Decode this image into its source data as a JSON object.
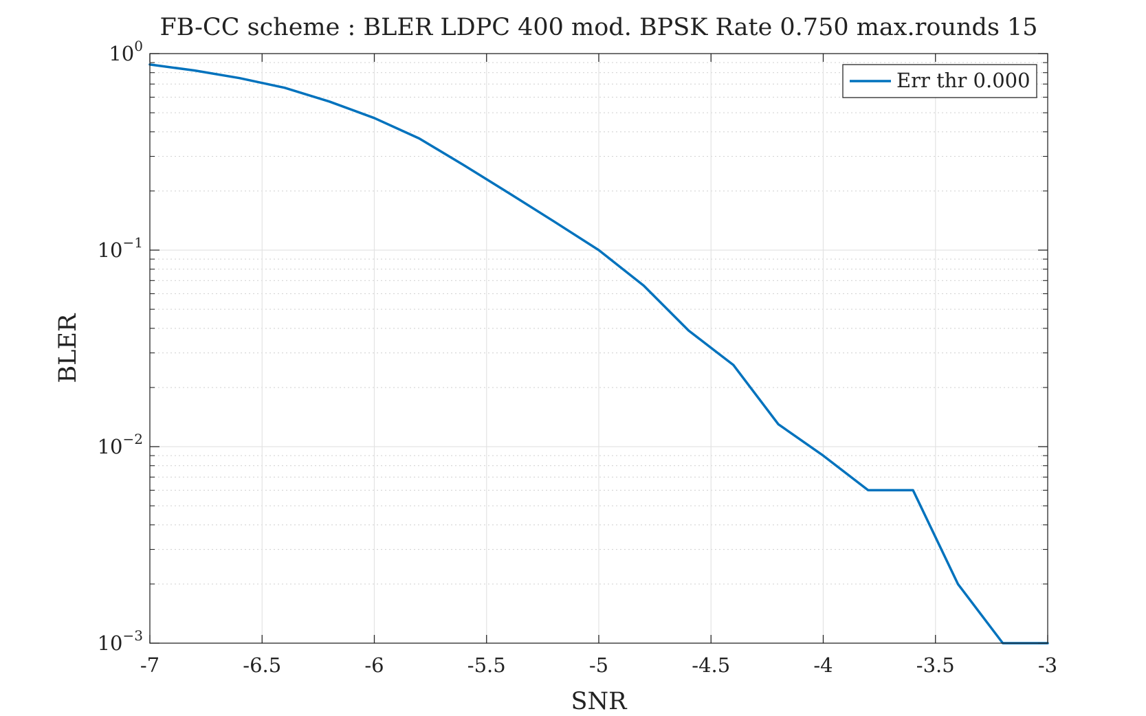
{
  "chart_data": {
    "type": "line",
    "title": "FB-CC scheme : BLER LDPC 400 mod. BPSK Rate 0.750 max.rounds 15",
    "xlabel": "SNR",
    "ylabel": "BLER",
    "xlim": [
      -7,
      -3
    ],
    "ylim": [
      0.001,
      1
    ],
    "yscale": "log",
    "x_ticks": [
      -7,
      -6.5,
      -6,
      -5.5,
      -5,
      -4.5,
      -4,
      -3.5,
      -3
    ],
    "x_tick_labels": [
      "-7",
      "-6.5",
      "-6",
      "-5.5",
      "-5",
      "-4.5",
      "-4",
      "-3.5",
      "-3"
    ],
    "y_ticks": [
      {
        "value": 1,
        "base": "10",
        "exponent": "0"
      },
      {
        "value": 0.1,
        "base": "10",
        "exponent": "−1"
      },
      {
        "value": 0.01,
        "base": "10",
        "exponent": "−2"
      },
      {
        "value": 0.001,
        "base": "10",
        "exponent": "−3"
      }
    ],
    "grid": true,
    "minor_grid": true,
    "legend_position": "top-right",
    "series": [
      {
        "name": "Err thr 0.000",
        "color": "#0072BD",
        "x": [
          -7,
          -6.8,
          -6.6,
          -6.4,
          -6.2,
          -6,
          -5.8,
          -5.6,
          -5.4,
          -5.2,
          -5,
          -4.8,
          -4.6,
          -4.4,
          -4.2,
          -4,
          -3.8,
          -3.6,
          -3.4,
          -3.2,
          -3
        ],
        "y": [
          0.88,
          0.82,
          0.75,
          0.67,
          0.57,
          0.47,
          0.37,
          0.27,
          0.195,
          0.14,
          0.1,
          0.066,
          0.039,
          0.026,
          0.013,
          0.009,
          0.006,
          0.006,
          0.002,
          0.001,
          0.001
        ]
      }
    ]
  }
}
